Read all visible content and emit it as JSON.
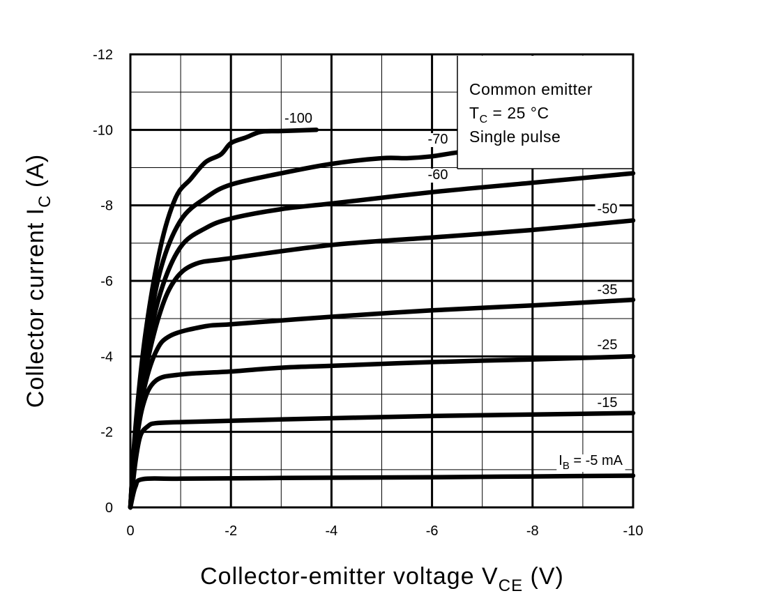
{
  "chart_data": {
    "type": "line",
    "xlabel": {
      "main": "Collector-emitter voltage  V",
      "sub": "CE",
      "unit": "  (V)"
    },
    "ylabel": {
      "main": "Collector current  I",
      "sub": "C",
      "unit": "  (A)"
    },
    "xlim": [
      0,
      -10
    ],
    "ylim": [
      0,
      -12
    ],
    "x_ticks": [
      0,
      -2,
      -4,
      -6,
      -8,
      -10
    ],
    "y_ticks": [
      0,
      -2,
      -4,
      -6,
      -8,
      -10,
      -12
    ],
    "x_tick_labels": [
      "0",
      "-2",
      "-4",
      "-6",
      "-8",
      "-10"
    ],
    "y_tick_labels": [
      "0",
      "-2",
      "-4",
      "-6",
      "-8",
      "-10",
      "-12"
    ],
    "grid": true,
    "annotation": {
      "line1": "Common emitter",
      "line2_main": "T",
      "line2_sub": "C",
      "line2_rest": " = 25 °C",
      "line3": "Single pulse"
    },
    "series": [
      {
        "name": "I_B = -5 mA",
        "label_main": "I",
        "label_sub": "B",
        "label_rest": " = -5 mA",
        "points": [
          [
            0,
            0
          ],
          [
            -0.1,
            -0.55
          ],
          [
            -0.25,
            -0.75
          ],
          [
            -1,
            -0.76
          ],
          [
            -3,
            -0.78
          ],
          [
            -6,
            -0.8
          ],
          [
            -8,
            -0.82
          ],
          [
            -10,
            -0.84
          ]
        ]
      },
      {
        "name": "-15",
        "label": "-15",
        "points": [
          [
            0,
            0
          ],
          [
            -0.1,
            -1.2
          ],
          [
            -0.2,
            -1.9
          ],
          [
            -0.35,
            -2.15
          ],
          [
            -0.5,
            -2.23
          ],
          [
            -1,
            -2.26
          ],
          [
            -3,
            -2.33
          ],
          [
            -6,
            -2.42
          ],
          [
            -8,
            -2.46
          ],
          [
            -10,
            -2.5
          ]
        ]
      },
      {
        "name": "-25",
        "label": "-25",
        "points": [
          [
            0,
            0
          ],
          [
            -0.1,
            -1.5
          ],
          [
            -0.25,
            -2.7
          ],
          [
            -0.5,
            -3.35
          ],
          [
            -1,
            -3.52
          ],
          [
            -2,
            -3.6
          ],
          [
            -3,
            -3.7
          ],
          [
            -4,
            -3.75
          ],
          [
            -6,
            -3.85
          ],
          [
            -8,
            -3.92
          ],
          [
            -10,
            -4.0
          ]
        ]
      },
      {
        "name": "-35",
        "label": "-35",
        "points": [
          [
            0,
            0
          ],
          [
            -0.1,
            -1.6
          ],
          [
            -0.25,
            -3.0
          ],
          [
            -0.5,
            -4.1
          ],
          [
            -0.8,
            -4.55
          ],
          [
            -1.5,
            -4.8
          ],
          [
            -2,
            -4.85
          ],
          [
            -4,
            -5.05
          ],
          [
            -6,
            -5.22
          ],
          [
            -8,
            -5.35
          ],
          [
            -10,
            -5.5
          ]
        ]
      },
      {
        "name": "-50",
        "label": "-50",
        "points": [
          [
            0,
            0
          ],
          [
            -0.1,
            -1.8
          ],
          [
            -0.3,
            -3.6
          ],
          [
            -0.6,
            -5.2
          ],
          [
            -0.9,
            -6.05
          ],
          [
            -1.3,
            -6.45
          ],
          [
            -2,
            -6.6
          ],
          [
            -4,
            -6.95
          ],
          [
            -6,
            -7.15
          ],
          [
            -8,
            -7.35
          ],
          [
            -10,
            -7.6
          ]
        ]
      },
      {
        "name": "-60",
        "label": "-60",
        "points": [
          [
            0,
            0
          ],
          [
            -0.1,
            -1.9
          ],
          [
            -0.3,
            -3.9
          ],
          [
            -0.6,
            -5.7
          ],
          [
            -1,
            -6.9
          ],
          [
            -1.5,
            -7.4
          ],
          [
            -2,
            -7.65
          ],
          [
            -3,
            -7.9
          ],
          [
            -4,
            -8.05
          ],
          [
            -6,
            -8.35
          ],
          [
            -8,
            -8.6
          ],
          [
            -10,
            -8.85
          ]
        ]
      },
      {
        "name": "-70",
        "label": "-70",
        "points": [
          [
            0,
            0
          ],
          [
            -0.1,
            -2.0
          ],
          [
            -0.3,
            -4.2
          ],
          [
            -0.6,
            -6.3
          ],
          [
            -1,
            -7.6
          ],
          [
            -1.5,
            -8.2
          ],
          [
            -2,
            -8.55
          ],
          [
            -3,
            -8.85
          ],
          [
            -4,
            -9.1
          ],
          [
            -5,
            -9.25
          ],
          [
            -5.5,
            -9.25
          ],
          [
            -6,
            -9.3
          ],
          [
            -6.5,
            -9.4
          ],
          [
            -7,
            -9.45
          ]
        ]
      },
      {
        "name": "-100",
        "label": "-100",
        "points": [
          [
            0,
            0
          ],
          [
            -0.1,
            -2.1
          ],
          [
            -0.3,
            -4.6
          ],
          [
            -0.6,
            -6.9
          ],
          [
            -0.9,
            -8.2
          ],
          [
            -1.2,
            -8.7
          ],
          [
            -1.5,
            -9.15
          ],
          [
            -1.8,
            -9.35
          ],
          [
            -2,
            -9.65
          ],
          [
            -2.3,
            -9.8
          ],
          [
            -2.6,
            -9.95
          ],
          [
            -3,
            -9.97
          ],
          [
            -3.7,
            -10.0
          ]
        ]
      }
    ]
  }
}
